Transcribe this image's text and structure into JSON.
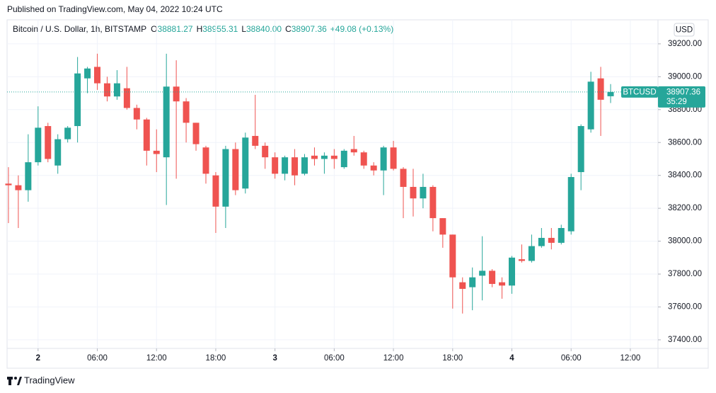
{
  "published": "Published on TradingView.com, May 04, 2022 10:24 UTC",
  "footer": "TradingView",
  "chart_data": {
    "type": "candlestick",
    "title": "Bitcoin / U.S. Dollar, 1h, BITSTAMP",
    "ohlc_legend": [
      {
        "label": "O",
        "value": "38881.27"
      },
      {
        "label": "H",
        "value": "38955.31"
      },
      {
        "label": "L",
        "value": "38840.00"
      },
      {
        "label": "C",
        "value": "38907.36"
      }
    ],
    "change": "+49.08 (+0.13%)",
    "currency": "USD",
    "symbol": "BTCUSD",
    "last_price": 38907.36,
    "countdown": "35:29",
    "up_color": "#26a69a",
    "down_color": "#ef5350",
    "grid": true,
    "open": [
      38350,
      38340,
      38310,
      38480,
      38700,
      38460,
      38620,
      38700,
      38990,
      39060,
      38960,
      38880,
      38930,
      38810,
      38740,
      38550,
      38510,
      38940,
      38850,
      38720,
      38570,
      38400,
      38210,
      38560,
      38320,
      38640,
      38580,
      38510,
      38410,
      38510,
      38410,
      38520,
      38500,
      38520,
      38450,
      38560,
      38540,
      38460,
      38430,
      38570,
      38440,
      38330,
      38260,
      38330,
      38140,
      38040,
      37750,
      37720,
      37790,
      37820,
      37750,
      37730,
      37890,
      37880,
      37970,
      38020,
      37990,
      38060,
      38420,
      38680,
      38990,
      38881.27
    ],
    "high": [
      38450,
      38400,
      38650,
      38820,
      38720,
      38650,
      38700,
      39120,
      39060,
      39140,
      39000,
      39040,
      39060,
      38830,
      38750,
      38680,
      39140,
      39100,
      38870,
      38720,
      38580,
      38420,
      38580,
      38600,
      38660,
      38890,
      38600,
      38540,
      38520,
      38560,
      38530,
      38570,
      38540,
      38560,
      38560,
      38640,
      38550,
      38480,
      38580,
      38610,
      38450,
      38440,
      38410,
      38340,
      38140,
      38040,
      37780,
      37840,
      38030,
      37830,
      37780,
      37910,
      37980,
      38040,
      38080,
      38080,
      38100,
      38410,
      38710,
      39030,
      39060,
      38955.31
    ],
    "low": [
      38110,
      38080,
      38240,
      38460,
      38480,
      38410,
      38600,
      38600,
      38900,
      38920,
      38850,
      38860,
      38800,
      38680,
      38460,
      38420,
      38220,
      38380,
      38600,
      38550,
      38350,
      38050,
      38080,
      38280,
      38290,
      38560,
      38440,
      38380,
      38370,
      38340,
      38400,
      38460,
      38410,
      38440,
      38440,
      38520,
      38440,
      38400,
      38280,
      38430,
      38140,
      38150,
      38200,
      38060,
      37960,
      37590,
      37560,
      37580,
      37640,
      37720,
      37650,
      37680,
      37870,
      37870,
      37960,
      37950,
      37980,
      38040,
      38310,
      38660,
      38640,
      38840
    ],
    "close": [
      38340,
      38310,
      38480,
      38690,
      38500,
      38620,
      38690,
      39020,
      39050,
      38960,
      38880,
      38960,
      38810,
      38740,
      38550,
      38530,
      38940,
      38850,
      38720,
      38590,
      38410,
      38210,
      38560,
      38310,
      38630,
      38580,
      38510,
      38410,
      38510,
      38400,
      38510,
      38500,
      38520,
      38500,
      38550,
      38540,
      38460,
      38430,
      38570,
      38440,
      38330,
      38260,
      38330,
      38140,
      38040,
      37780,
      37710,
      37780,
      37820,
      37740,
      37730,
      37900,
      37880,
      37970,
      38020,
      37990,
      38080,
      38390,
      38700,
      38970,
      38860,
      38907.36
    ],
    "xlim": [
      -0.14,
      65.8
    ],
    "xticks": [
      {
        "value": 3,
        "label": "2"
      },
      {
        "value": 9,
        "label": "06:00"
      },
      {
        "value": 15,
        "label": "12:00"
      },
      {
        "value": 21,
        "label": "18:00"
      },
      {
        "value": 27,
        "label": "3"
      },
      {
        "value": 33,
        "label": "06:00"
      },
      {
        "value": 39,
        "label": "12:00"
      },
      {
        "value": 45,
        "label": "18:00"
      },
      {
        "value": 51,
        "label": "4"
      },
      {
        "value": 57,
        "label": "06:00"
      },
      {
        "value": 63,
        "label": "12:00"
      }
    ],
    "ylim": [
      37348,
      39346
    ],
    "yticks": [
      {
        "value": 37400,
        "label": "37400.00"
      },
      {
        "value": 37600,
        "label": "37600.00"
      },
      {
        "value": 37800,
        "label": "37800.00"
      },
      {
        "value": 38000,
        "label": "38000.00"
      },
      {
        "value": 38200,
        "label": "38200.00"
      },
      {
        "value": 38400,
        "label": "38400.00"
      },
      {
        "value": 38600,
        "label": "38600.00"
      },
      {
        "value": 38800,
        "label": "38800.00"
      },
      {
        "value": 39000,
        "label": "39000.00"
      },
      {
        "value": 39200,
        "label": "39200.00"
      }
    ]
  }
}
